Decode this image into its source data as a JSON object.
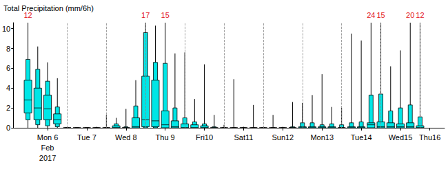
{
  "chart_data": {
    "type": "boxplot",
    "title": "Total Precipitation (mm/6h)",
    "categories": [
      null,
      null,
      null,
      "Mon 6\nFeb\n2017",
      null,
      null,
      null,
      "Tue 7",
      null,
      null,
      null,
      "Wed 8",
      null,
      null,
      null,
      "Thu 9",
      null,
      null,
      null,
      "Fri10",
      null,
      null,
      null,
      "Sat11",
      null,
      null,
      null,
      "Sun12",
      null,
      null,
      null,
      "Mon13",
      null,
      null,
      null,
      "Tue14",
      null,
      null,
      null,
      "Wed15",
      null,
      null,
      "Thu16",
      null
    ],
    "min": [
      null,
      0,
      0,
      0,
      0,
      0,
      0,
      0,
      0,
      0,
      0,
      0,
      0,
      0,
      0,
      0,
      0,
      0,
      0,
      0,
      0,
      0,
      0,
      0,
      0,
      0,
      0,
      0,
      0,
      0,
      0,
      0,
      0,
      0,
      0,
      0,
      0,
      0,
      0,
      0,
      0,
      0,
      null,
      null
    ],
    "p10": [
      null,
      0.8,
      0.3,
      0.2,
      0.1,
      0,
      0,
      0,
      0,
      0,
      0,
      0,
      0,
      0,
      0,
      0,
      0,
      0,
      0,
      0,
      0,
      0,
      0,
      0,
      0,
      0,
      0,
      0,
      0,
      0,
      0,
      0,
      0,
      0,
      0,
      0,
      0,
      0,
      0,
      0,
      0,
      0,
      null,
      null
    ],
    "p25": [
      null,
      1.5,
      0.8,
      0.8,
      0.4,
      0,
      0,
      0,
      0,
      0,
      0,
      0,
      0,
      0.1,
      0.1,
      0,
      0,
      0,
      0,
      0,
      0,
      0,
      0,
      0,
      0,
      0,
      0,
      0,
      0,
      0,
      0,
      0,
      0,
      0,
      0,
      0,
      0,
      0,
      0,
      0,
      0,
      0,
      null,
      null
    ],
    "median": [
      null,
      2.8,
      2.0,
      1.9,
      0.8,
      0,
      0,
      0,
      0,
      0,
      0,
      0,
      0.1,
      0.8,
      0.7,
      0.3,
      0.1,
      0,
      0,
      0,
      0,
      0,
      0,
      0,
      0,
      0,
      0,
      0,
      0,
      0,
      0,
      0,
      0,
      0,
      0,
      0,
      0.3,
      0.1,
      0.1,
      0.1,
      0.1,
      0,
      null,
      null
    ],
    "p75": [
      null,
      4.8,
      4.0,
      3.3,
      1.4,
      0,
      0,
      0,
      0,
      0,
      0.2,
      0,
      1.0,
      5.2,
      4.8,
      1.7,
      0.7,
      0.4,
      0.3,
      0.2,
      0,
      0,
      0,
      0,
      0,
      0,
      0,
      0,
      0,
      0.1,
      0.1,
      0.1,
      0.1,
      0,
      0.1,
      0.1,
      0.5,
      0.6,
      0.5,
      0.4,
      0.5,
      0.2,
      null,
      null
    ],
    "p90": [
      null,
      6.9,
      5.9,
      4.7,
      2.1,
      0,
      0,
      0,
      0,
      0,
      0.4,
      0.1,
      2.2,
      9.6,
      6.6,
      6.5,
      2.0,
      1.0,
      0.6,
      0.4,
      0.1,
      0,
      0,
      0,
      0,
      0,
      0,
      0,
      0.1,
      0.5,
      0.5,
      0.3,
      0.4,
      0.3,
      0.5,
      0.6,
      3.3,
      3.4,
      1.7,
      2.0,
      2.3,
      1.1,
      null,
      null
    ],
    "max": [
      null,
      12,
      8.2,
      6.6,
      5.0,
      0,
      0,
      0,
      0.1,
      1.3,
      1.0,
      1.9,
      4.8,
      17,
      10.3,
      15,
      7.5,
      7.6,
      2.9,
      6.4,
      1.3,
      0.3,
      4.9,
      0.1,
      2.3,
      0,
      1.3,
      0.1,
      2.6,
      2.5,
      3.3,
      5.4,
      2.1,
      2.0,
      9.5,
      8.8,
      24,
      15,
      6.2,
      7.8,
      20,
      12,
      null,
      null
    ],
    "color": "#00e6e6",
    "ylim": [
      0,
      10.6
    ],
    "yticks": [
      0,
      2,
      4,
      6,
      8,
      10
    ],
    "grid": true,
    "data_labels": true
  }
}
